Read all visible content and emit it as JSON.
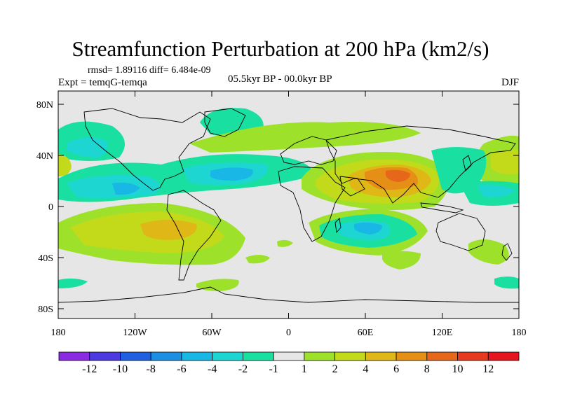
{
  "title": "Streamfunction Perturbation at 200 hPa (km2/s)",
  "stats_text": "rmsd= 1.89116 diff= 6.484e-09",
  "experiment_text": "Expt = temqG-temqa",
  "period_text": "05.5kyr BP - 00.0kyr BP",
  "season_text": "DJF",
  "lat_ticks": [
    "80N",
    "40N",
    "0",
    "40S",
    "80S"
  ],
  "lon_ticks": [
    "180",
    "120W",
    "60W",
    "0",
    "60E",
    "120E",
    "180"
  ],
  "colorbar": {
    "labels": [
      "-12",
      "-10",
      "-8",
      "-6",
      "-4",
      "-2",
      "-1",
      "1",
      "2",
      "4",
      "6",
      "8",
      "10",
      "12"
    ],
    "colors": [
      "#8a2be2",
      "#4b3adf",
      "#1f5fe0",
      "#1a8fe3",
      "#19b7e6",
      "#1dd6d2",
      "#19e0a0",
      "#e6e6e6",
      "#9ee12b",
      "#c3da1a",
      "#dfb716",
      "#e68f17",
      "#e6661a",
      "#e6391d",
      "#e6141e"
    ]
  },
  "field_colors": {
    "background": "#e6e6e6",
    "pos1": "#9ee12b",
    "pos2": "#c3da1a",
    "pos3": "#dfb716",
    "pos4": "#e68f17",
    "pos5": "#e6661a",
    "neg1": "#19e0a0",
    "neg2": "#1dd6d2",
    "neg3": "#19b7e6"
  }
}
